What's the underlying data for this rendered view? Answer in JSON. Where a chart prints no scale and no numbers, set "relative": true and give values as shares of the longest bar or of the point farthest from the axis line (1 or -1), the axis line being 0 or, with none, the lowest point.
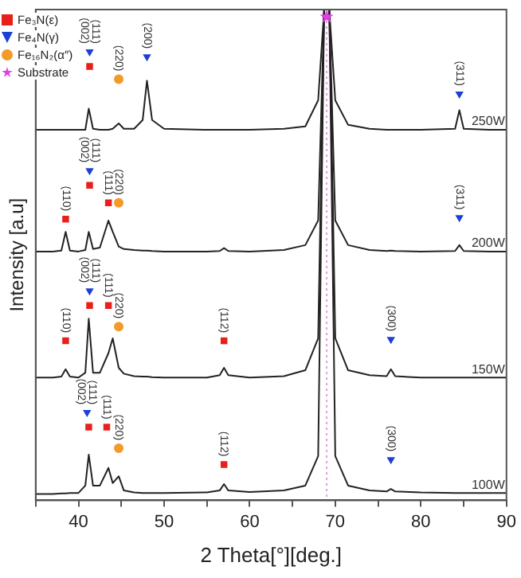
{
  "chart_data": {
    "type": "line",
    "relative": true,
    "xlabel": "2 Theta[°][deg.]",
    "ylabel": "Intensity [a.u]",
    "xlim": [
      35,
      90
    ],
    "xticks": [
      {
        "value": 35,
        "label": null
      },
      40,
      {
        "value": 45,
        "label": null
      },
      50,
      {
        "value": 55,
        "label": null
      },
      60,
      {
        "value": 65,
        "label": null
      },
      70,
      {
        "value": 75,
        "label": null
      },
      80,
      {
        "value": 85,
        "label": null
      },
      90
    ],
    "grid": false,
    "legend": "top left",
    "x": [
      35,
      37,
      38,
      38.5,
      39,
      40,
      40.8,
      41.2,
      41.7,
      42.5,
      43.5,
      44,
      44.7,
      45.3,
      46.5,
      47.5,
      48,
      48.6,
      50,
      55,
      56.5,
      57,
      57.5,
      60,
      64,
      66.5,
      68,
      68.7,
      69,
      69.3,
      70,
      71.5,
      74,
      76,
      76.5,
      77,
      80,
      84,
      84.5,
      85,
      88,
      90
    ],
    "series": [
      {
        "name": "250W",
        "marker": "none",
        "color": "#222222",
        "values": [
          0.755,
          0.755,
          0.755,
          0.755,
          0.755,
          0.755,
          0.755,
          0.798,
          0.757,
          0.755,
          0.755,
          0.757,
          0.768,
          0.757,
          0.757,
          0.775,
          0.855,
          0.775,
          0.757,
          0.755,
          0.755,
          0.755,
          0.755,
          0.755,
          0.757,
          0.762,
          0.815,
          1,
          1,
          1,
          0.815,
          0.765,
          0.757,
          0.755,
          0.755,
          0.755,
          0.755,
          0.757,
          0.795,
          0.757,
          0.755,
          0.755
        ]
      },
      {
        "name": "200W",
        "marker": "none",
        "color": "#222222",
        "values": [
          0.507,
          0.507,
          0.509,
          0.547,
          0.509,
          0.507,
          0.51,
          0.547,
          0.512,
          0.515,
          0.57,
          0.547,
          0.517,
          0.512,
          0.51,
          0.509,
          0.509,
          0.508,
          0.507,
          0.507,
          0.508,
          0.514,
          0.508,
          0.507,
          0.51,
          0.52,
          0.57,
          1,
          1,
          1,
          0.57,
          0.52,
          0.51,
          0.508,
          0.509,
          0.508,
          0.507,
          0.508,
          0.52,
          0.508,
          0.507,
          0.507
        ]
      },
      {
        "name": "150W",
        "marker": "none",
        "color": "#222222",
        "values": [
          0.25,
          0.25,
          0.252,
          0.267,
          0.252,
          0.25,
          0.26,
          0.37,
          0.26,
          0.26,
          0.3,
          0.33,
          0.27,
          0.258,
          0.253,
          0.252,
          0.252,
          0.251,
          0.25,
          0.25,
          0.255,
          0.27,
          0.255,
          0.25,
          0.253,
          0.265,
          0.33,
          1,
          1,
          1,
          0.33,
          0.265,
          0.255,
          0.253,
          0.267,
          0.253,
          0.25,
          0.25,
          0.25,
          0.25,
          0.25,
          0.25
        ]
      },
      {
        "name": "100W",
        "marker": "none",
        "color": "#222222",
        "values": [
          0.013,
          0.013,
          0.014,
          0.014,
          0.015,
          0.015,
          0.03,
          0.093,
          0.03,
          0.03,
          0.066,
          0.035,
          0.049,
          0.02,
          0.016,
          0.015,
          0.015,
          0.015,
          0.015,
          0.016,
          0.02,
          0.033,
          0.02,
          0.017,
          0.02,
          0.03,
          0.09,
          1,
          1,
          1,
          0.09,
          0.03,
          0.02,
          0.018,
          0.023,
          0.018,
          0.016,
          0.015,
          0.015,
          0.015,
          0.015,
          0.015
        ]
      },
      {
        "name": "Fe₃N(ε)",
        "type": "scatter",
        "marker": "square",
        "color": "#e8201c",
        "x": [
          41.3,
          38.5,
          41.3,
          43.5,
          38.5,
          41.3,
          43.5,
          57,
          41.2,
          43.3,
          57
        ],
        "values": [
          0.884,
          0.573,
          0.642,
          0.606,
          0.325,
          0.397,
          0.397,
          0.325,
          0.149,
          0.149,
          0.073
        ]
      },
      {
        "name": "Fe₄N(γ)",
        "type": "scatter",
        "marker": "triangle",
        "color": "#1c3fd6",
        "x": [
          41.3,
          48,
          84.5,
          41.3,
          84.5,
          41.3,
          76.5,
          41,
          76.5
        ],
        "values": [
          0.914,
          0.904,
          0.828,
          0.672,
          0.576,
          0.427,
          0.328,
          0.179,
          0.083
        ]
      },
      {
        "name": "Fe₁₆N₂(α″)",
        "type": "scatter",
        "marker": "circle",
        "color": "#f39a2a",
        "x": [
          44.7,
          44.7,
          44.7,
          44.7
        ],
        "values": [
          0.858,
          0.606,
          0.354,
          0.106
        ]
      },
      {
        "name": "Substrate",
        "type": "scatter",
        "marker": "star",
        "color": "#e040e0",
        "x": [
          69
        ],
        "values": [
          0.985
        ]
      }
    ],
    "ref_lines": [
      {
        "axis": "x",
        "value": 69,
        "color": "#e79be7",
        "line_style": "dotted"
      }
    ],
    "annotations": [
      {
        "text": "(002)",
        "x": 41.3,
        "y": 0.914
      },
      {
        "text": "(111)",
        "x": 41.3,
        "y": 0.914
      },
      {
        "text": "(220)",
        "x": 44.7,
        "y": 0.858
      },
      {
        "text": "(200)",
        "x": 48,
        "y": 0.904
      },
      {
        "text": "(311)",
        "x": 84.5,
        "y": 0.828
      },
      {
        "text": "(002)",
        "x": 41.3,
        "y": 0.672
      },
      {
        "text": "(111)",
        "x": 41.3,
        "y": 0.672
      },
      {
        "text": "(110)",
        "x": 38.5,
        "y": 0.573
      },
      {
        "text": "(111)",
        "x": 43.5,
        "y": 0.606
      },
      {
        "text": "(220)",
        "x": 44.7,
        "y": 0.606
      },
      {
        "text": "(311)",
        "x": 84.5,
        "y": 0.576
      },
      {
        "text": "(002)",
        "x": 41.3,
        "y": 0.427
      },
      {
        "text": "(111)",
        "x": 41.3,
        "y": 0.427
      },
      {
        "text": "(110)",
        "x": 38.5,
        "y": 0.325
      },
      {
        "text": "(111)",
        "x": 43.5,
        "y": 0.397
      },
      {
        "text": "(220)",
        "x": 44.7,
        "y": 0.354
      },
      {
        "text": "(112)",
        "x": 57,
        "y": 0.325
      },
      {
        "text": "(300)",
        "x": 76.5,
        "y": 0.328
      },
      {
        "text": "(002)",
        "x": 41,
        "y": 0.179
      },
      {
        "text": "(111)",
        "x": 41,
        "y": 0.179
      },
      {
        "text": "(111)",
        "x": 43.3,
        "y": 0.149
      },
      {
        "text": "(220)",
        "x": 44.7,
        "y": 0.106
      },
      {
        "text": "(112)",
        "x": 57,
        "y": 0.073
      },
      {
        "text": "(300)",
        "x": 76.5,
        "y": 0.083
      }
    ]
  }
}
